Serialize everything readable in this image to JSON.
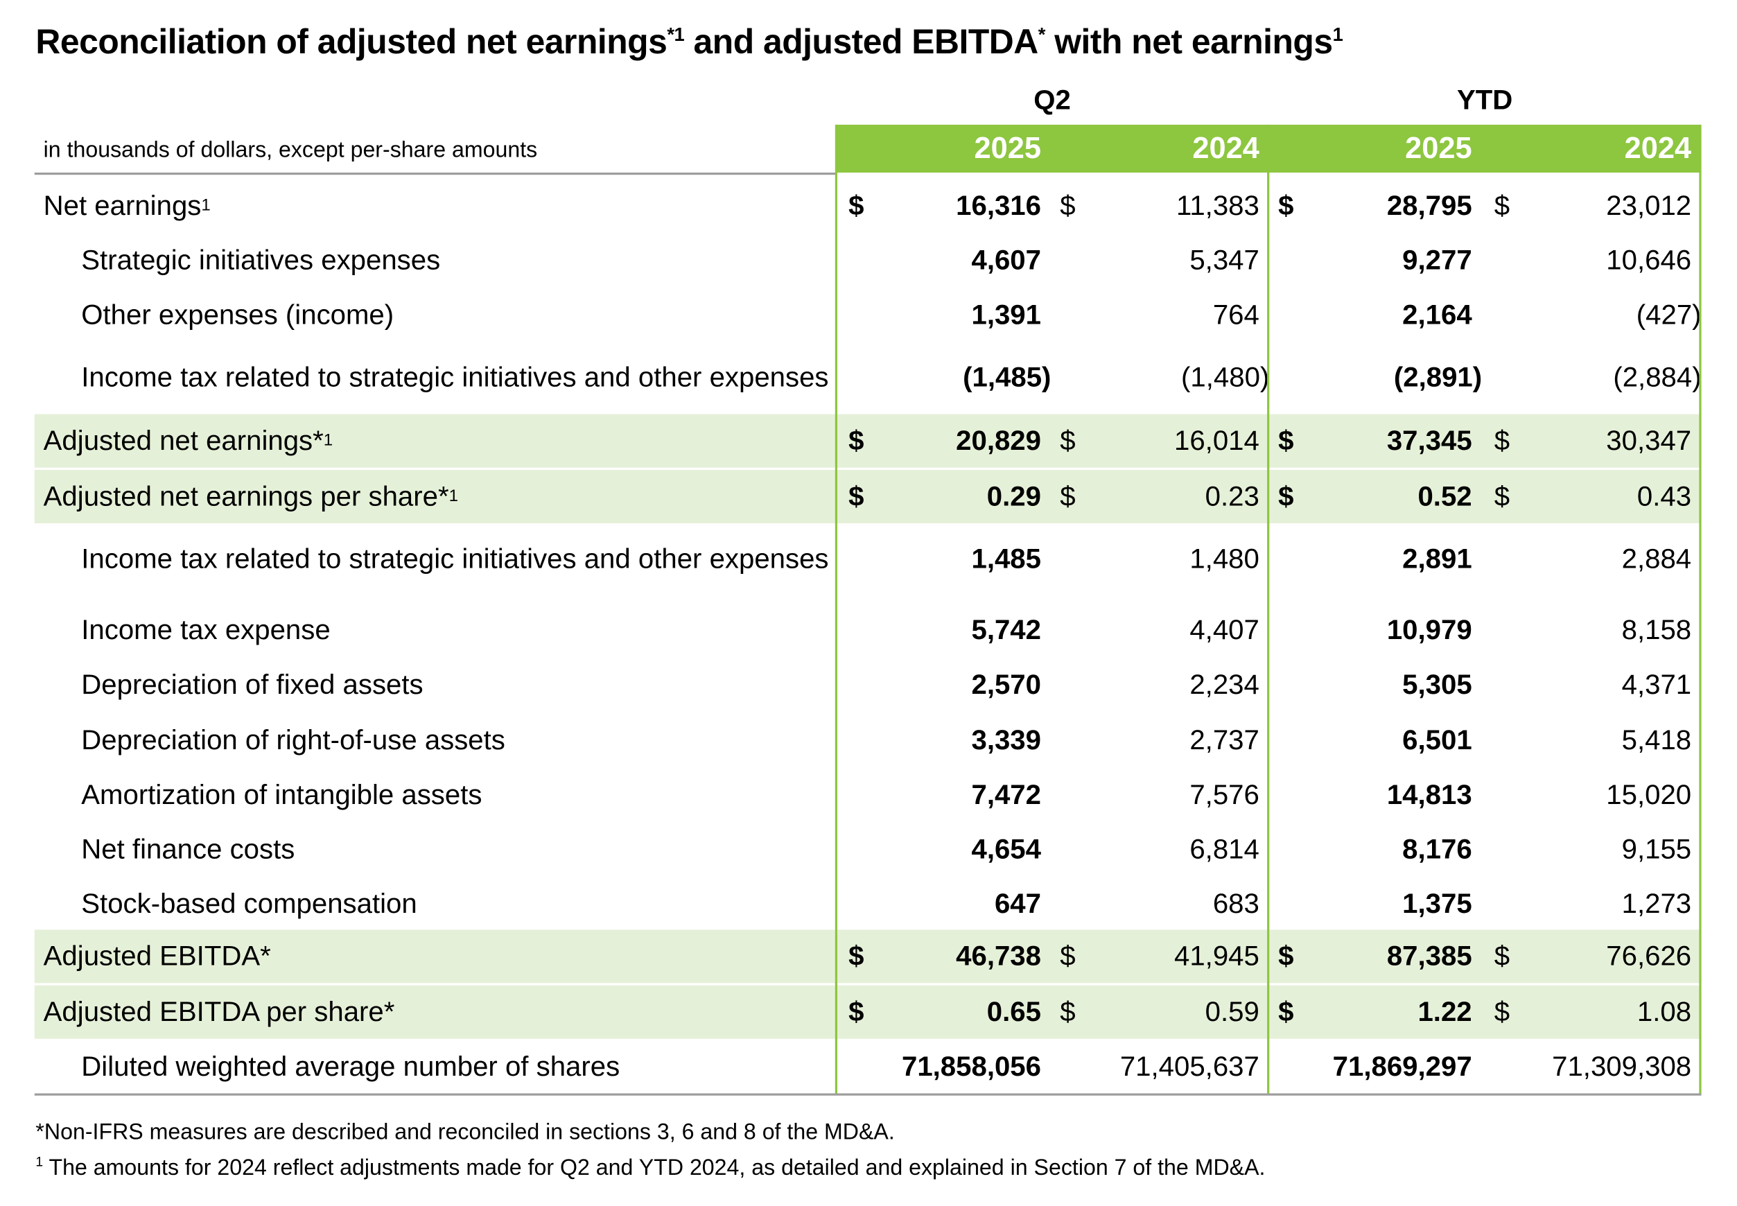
{
  "title": {
    "part1": "Reconciliation of adjusted net earnings",
    "sup1": "*1",
    "part2": " and adjusted EBITDA",
    "sup2": "*",
    "part3": " with net earnings",
    "sup3": "1"
  },
  "header": {
    "units": "in thousands of dollars, except per-share amounts",
    "period_q2": "Q2",
    "period_ytd": "YTD",
    "years": [
      "2025",
      "2024",
      "2025",
      "2024"
    ]
  },
  "rows": [
    {
      "label": "Net earnings",
      "label_sup": "1",
      "indent": false,
      "highlight": false,
      "dollar": true,
      "values": [
        "16,316",
        "11,383",
        "28,795",
        "23,012"
      ]
    },
    {
      "label": "Strategic initiatives expenses",
      "label_sup": "",
      "indent": true,
      "highlight": false,
      "dollar": false,
      "values": [
        "4,607",
        "5,347",
        "9,277",
        "10,646"
      ]
    },
    {
      "label": "Other expenses (income)",
      "label_sup": "",
      "indent": true,
      "highlight": false,
      "dollar": false,
      "values": [
        "1,391",
        "764",
        "2,164",
        "(427)"
      ]
    },
    {
      "label": "Income tax related to strategic initiatives and other expenses",
      "label_sup": "",
      "indent": true,
      "highlight": false,
      "dollar": false,
      "values": [
        "(1,485)",
        "(1,480)",
        "(2,891)",
        "(2,884)"
      ]
    },
    {
      "label": "Adjusted net earnings*",
      "label_sup": "1",
      "indent": false,
      "highlight": true,
      "dollar": true,
      "values": [
        "20,829",
        "16,014",
        "37,345",
        "30,347"
      ]
    },
    {
      "label": "Adjusted net earnings per share*",
      "label_sup": "1",
      "indent": false,
      "highlight": true,
      "dollar": true,
      "values": [
        "0.29",
        "0.23",
        "0.52",
        "0.43"
      ]
    },
    {
      "label": "Income tax related to strategic initiatives and other expenses",
      "label_sup": "",
      "indent": true,
      "highlight": false,
      "dollar": false,
      "values": [
        "1,485",
        "1,480",
        "2,891",
        "2,884"
      ]
    },
    {
      "label": "Income tax expense",
      "label_sup": "",
      "indent": true,
      "highlight": false,
      "dollar": false,
      "values": [
        "5,742",
        "4,407",
        "10,979",
        "8,158"
      ]
    },
    {
      "label": "Depreciation of fixed assets",
      "label_sup": "",
      "indent": true,
      "highlight": false,
      "dollar": false,
      "values": [
        "2,570",
        "2,234",
        "5,305",
        "4,371"
      ]
    },
    {
      "label": "Depreciation of right-of-use assets",
      "label_sup": "",
      "indent": true,
      "highlight": false,
      "dollar": false,
      "values": [
        "3,339",
        "2,737",
        "6,501",
        "5,418"
      ]
    },
    {
      "label": "Amortization of intangible assets",
      "label_sup": "",
      "indent": true,
      "highlight": false,
      "dollar": false,
      "values": [
        "7,472",
        "7,576",
        "14,813",
        "15,020"
      ]
    },
    {
      "label": "Net finance costs",
      "label_sup": "",
      "indent": true,
      "highlight": false,
      "dollar": false,
      "values": [
        "4,654",
        "6,814",
        "8,176",
        "9,155"
      ]
    },
    {
      "label": "Stock-based compensation",
      "label_sup": "",
      "indent": true,
      "highlight": false,
      "dollar": false,
      "values": [
        "647",
        "683",
        "1,375",
        "1,273"
      ]
    },
    {
      "label": "Adjusted EBITDA*",
      "label_sup": "",
      "indent": false,
      "highlight": true,
      "dollar": true,
      "values": [
        "46,738",
        "41,945",
        "87,385",
        "76,626"
      ]
    },
    {
      "label": "Adjusted EBITDA per share*",
      "label_sup": "",
      "indent": false,
      "highlight": true,
      "dollar": true,
      "values": [
        "0.65",
        "0.59",
        "1.22",
        "1.08"
      ]
    },
    {
      "label": "Diluted weighted average number of shares",
      "label_sup": "",
      "indent": true,
      "highlight": false,
      "dollar": false,
      "values": [
        "71,858,056",
        "71,405,637",
        "71,869,297",
        "71,309,308"
      ]
    }
  ],
  "currency_symbol": "$",
  "footnotes": {
    "note1": "*Non-IFRS measures are described and reconciled in sections 3, 6 and 8 of the MD&A.",
    "note2_sup": "1",
    "note2": " The amounts for 2024 reflect adjustments made for Q2 and YTD 2024, as detailed and explained in Section 7 of the MD&A."
  },
  "colors": {
    "accent_green": "#8dc63f",
    "highlight_green": "#e5f0d8",
    "rule_gray": "#9d9d9d"
  }
}
